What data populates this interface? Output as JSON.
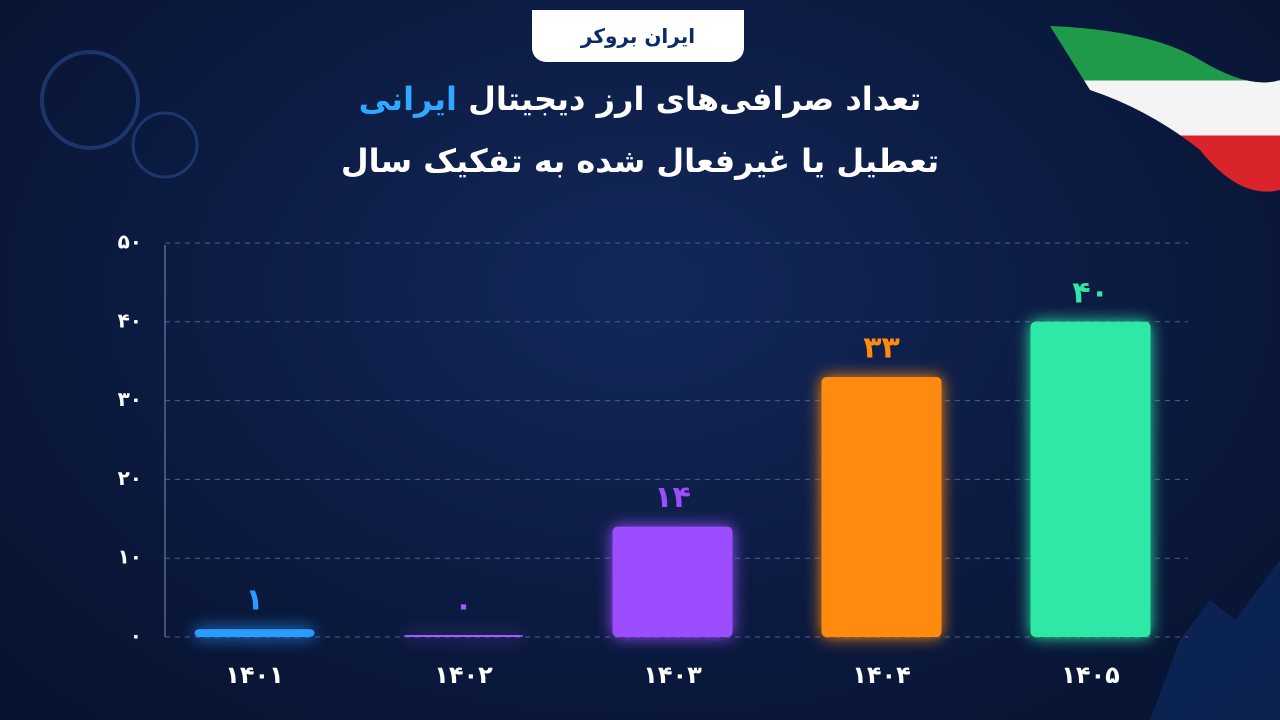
{
  "brand": "ایران بروکر",
  "chart_data": {
    "type": "bar",
    "title": {
      "text": "تعداد صرافی‌های ارز دیجیتال",
      "highlight": "ایرانی"
    },
    "subtitle": "تعطیل یا غیرفعال شده به تفکیک سال",
    "categories": [
      "۱۴۰۱",
      "۱۴۰۲",
      "۱۴۰۳",
      "۱۴۰۴",
      "۱۴۰۵"
    ],
    "values": [
      1,
      0,
      14,
      33,
      40
    ],
    "value_labels": [
      "۱",
      "۰",
      "۱۴",
      "۳۳",
      "۴۰"
    ],
    "colors": [
      "#2a9bff",
      "#a05cff",
      "#9b4dff",
      "#ff8a10",
      "#2ee8a6"
    ],
    "ylim": [
      0,
      50
    ],
    "yticks": [
      {
        "value": 0,
        "label": "۰"
      },
      {
        "value": 10,
        "label": "۱۰"
      },
      {
        "value": 20,
        "label": "۲۰"
      },
      {
        "value": 30,
        "label": "۳۰"
      },
      {
        "value": 40,
        "label": "۴۰"
      },
      {
        "value": 50,
        "label": "۵۰"
      }
    ],
    "grid": true
  }
}
